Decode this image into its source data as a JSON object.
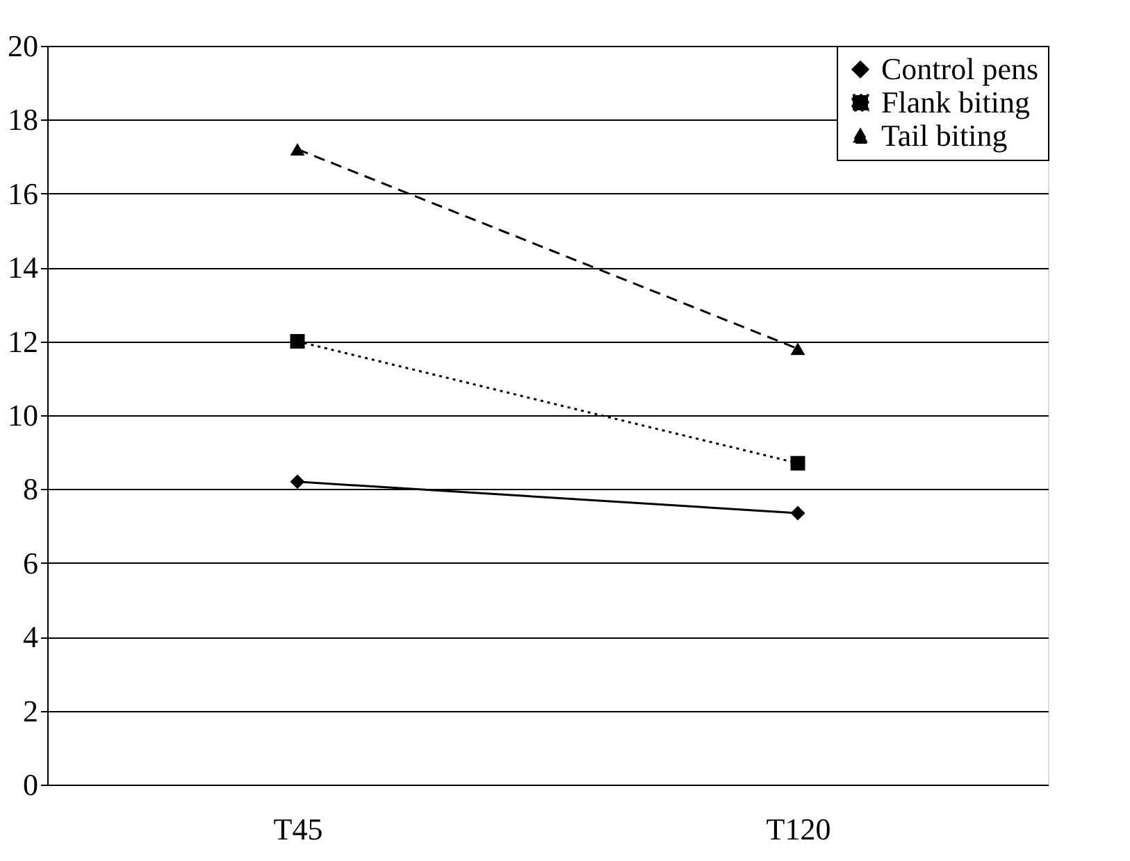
{
  "chart_data": {
    "type": "line",
    "categories": [
      "T45",
      "T120"
    ],
    "series": [
      {
        "name": "Control pens",
        "color": "#000000",
        "values": [
          8.2,
          7.35
        ],
        "marker": "diamond",
        "line_style": "solid"
      },
      {
        "name": "Flank biting",
        "color": "#000000",
        "values": [
          12.0,
          8.7
        ],
        "marker": "square",
        "line_style": "dotted"
      },
      {
        "name": "Tail biting",
        "color": "#000000",
        "values": [
          17.2,
          11.8
        ],
        "marker": "triangle",
        "line_style": "dashed"
      }
    ],
    "ylim": [
      0,
      20
    ],
    "yticks": [
      0,
      2,
      4,
      6,
      8,
      10,
      12,
      14,
      16,
      18,
      20
    ],
    "grid": "y",
    "legend": "top right"
  }
}
